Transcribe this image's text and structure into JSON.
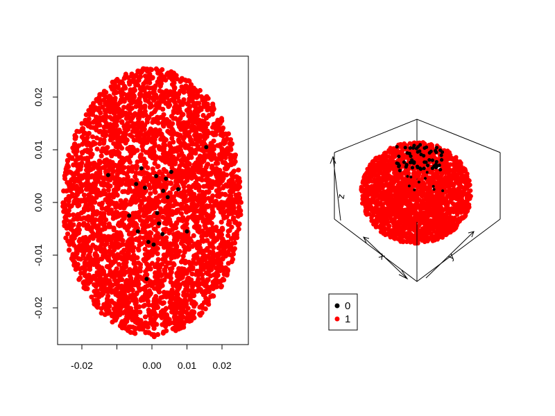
{
  "colors": {
    "class_0": "#000000",
    "class_1": "#ff0000",
    "axis": "#000000",
    "background": "#ffffff"
  },
  "chart_data": [
    {
      "type": "scatter",
      "title": "",
      "xlabel": "",
      "ylabel": "",
      "xlim": [
        -0.027,
        0.027
      ],
      "ylim": [
        -0.027,
        0.028
      ],
      "x_ticks": [
        -0.02,
        0.0,
        0.01,
        0.02
      ],
      "x_tick_labels": [
        "-0.02",
        "0.00",
        "0.01",
        "0.02"
      ],
      "y_ticks": [
        -0.02,
        -0.01,
        0.0,
        0.01,
        0.02
      ],
      "y_tick_labels": [
        "-0.02",
        "-0.01",
        "0.00",
        "0.01",
        "0.02"
      ],
      "grid": false,
      "series": [
        {
          "name": "0",
          "color": "#000000",
          "points": [
            [
              -0.0125,
              0.0052
            ],
            [
              -0.0045,
              0.0035
            ],
            [
              0.0012,
              0.005
            ],
            [
              0.004,
              0.0045
            ],
            [
              0.0055,
              0.0058
            ],
            [
              0.0032,
              0.0022
            ],
            [
              -0.002,
              0.0028
            ],
            [
              0.0015,
              -0.002
            ],
            [
              -0.004,
              -0.0055
            ],
            [
              0.002,
              -0.004
            ],
            [
              -0.001,
              -0.0075
            ],
            [
              0.0005,
              -0.008
            ],
            [
              0.003,
              -0.006
            ],
            [
              0.01,
              -0.0055
            ],
            [
              0.0155,
              0.0105
            ],
            [
              -0.0015,
              -0.0145
            ],
            [
              0.0075,
              0.0025
            ],
            [
              -0.0065,
              -0.0025
            ],
            [
              0.0045,
              0.001
            ],
            [
              -0.003,
              0.0065
            ]
          ]
        },
        {
          "name": "1",
          "color": "#ff0000",
          "shape": "ellipse",
          "center": [
            0.0,
            0.0
          ],
          "radii": [
            0.0255,
            0.0255
          ]
        }
      ]
    },
    {
      "type": "scatter3d",
      "title": "",
      "axis_labels": {
        "x": "x",
        "y": "y",
        "z": "z"
      },
      "grid": false,
      "box": true,
      "series": [
        {
          "name": "0",
          "color": "#000000"
        },
        {
          "name": "1",
          "color": "#ff0000",
          "shape": "sphere"
        }
      ]
    }
  ],
  "legend": {
    "placement": "bottom-left of 3D plot",
    "items": [
      {
        "label": "0",
        "color": "#000000"
      },
      {
        "label": "1",
        "color": "#ff0000"
      }
    ]
  }
}
